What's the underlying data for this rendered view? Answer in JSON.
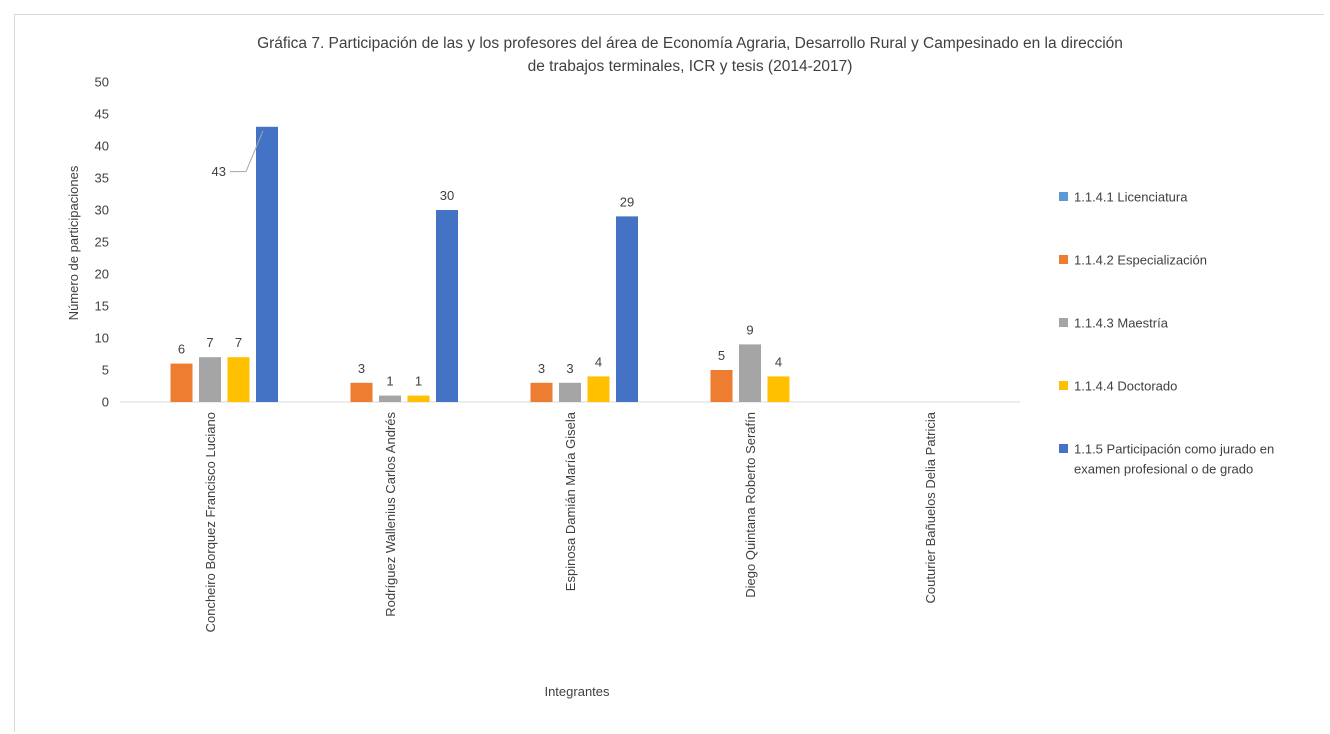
{
  "chart_data": {
    "type": "bar",
    "title_lines": [
      "Gráfica 7. Participación de las y los  profesores del área de Economía Agraria, Desarrollo Rural y Campesinado en la dirección",
      "de trabajos terminales, ICR y tesis (2014-2017)"
    ],
    "xlabel": "Integrantes",
    "ylabel": "Número de participaciones",
    "ylim": [
      0,
      50
    ],
    "yticks": [
      0,
      5,
      10,
      15,
      20,
      25,
      30,
      35,
      40,
      45,
      50
    ],
    "categories": [
      "Concheiro Borquez Francisco Luciano",
      "Rodríguez Wallenius Carlos Andrés",
      "Espinosa Damián María Gisela",
      "Diego Quintana Roberto Serafín",
      "Couturier Bañuelos Delia Patricia"
    ],
    "series": [
      {
        "name": "1.1.4.1 Licenciatura",
        "color": "#5b9bd5",
        "values": [
          0,
          0,
          0,
          0,
          0
        ]
      },
      {
        "name": "1.1.4.2 Especialización",
        "color": "#ed7d31",
        "values": [
          6,
          3,
          3,
          5,
          0
        ]
      },
      {
        "name": "1.1.4.3 Maestría",
        "color": "#a5a5a5",
        "values": [
          7,
          1,
          3,
          9,
          0
        ]
      },
      {
        "name": "1.1.4.4 Doctorado",
        "color": "#ffc000",
        "values": [
          7,
          1,
          4,
          4,
          0
        ]
      },
      {
        "name": "1.1.5 Participación como jurado en examen profesional o de grado",
        "color": "#4472c4",
        "values": [
          43,
          30,
          29,
          0,
          0
        ]
      }
    ],
    "legend_position": "right",
    "legend_lines": [
      [
        "1.1.4.1 Licenciatura"
      ],
      [
        "1.1.4.2 Especialización"
      ],
      [
        "1.1.4.3 Maestría"
      ],
      [
        "1.1.4.4 Doctorado"
      ],
      [
        "1.1.5 Participación como jurado en",
        "examen profesional o de grado"
      ]
    ],
    "grid": false
  }
}
